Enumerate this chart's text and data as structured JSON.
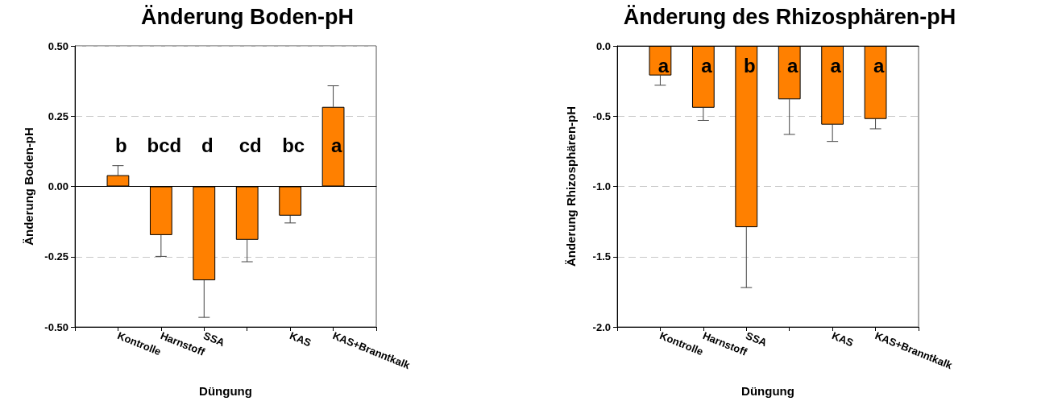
{
  "chart_data": [
    {
      "type": "bar",
      "title": "Änderung Boden-pH",
      "xlabel": "Düngung",
      "ylabel": "Änderung Boden-pH",
      "categories": [
        "Kontrolle",
        "Harnstoff",
        "SSA",
        null,
        "KAS",
        "KAS+Branntkalk"
      ],
      "series": [
        {
          "color": "#ff8000",
          "values": [
            0.04,
            -0.173,
            -0.334,
            -0.19,
            -0.104,
            0.283
          ],
          "errors": [
            [
              0.04,
              0.074
            ],
            [
              -0.249,
              -0.173
            ],
            [
              -0.466,
              -0.334
            ],
            [
              -0.268,
              -0.19
            ],
            [
              -0.13,
              -0.104
            ],
            [
              0.283,
              0.358
            ]
          ]
        }
      ],
      "ylim": [
        -0.5,
        0.5
      ],
      "yticks": [
        {
          "value": -0.5,
          "label": "-0.50"
        },
        {
          "value": -0.25,
          "label": "-0.25"
        },
        {
          "value": 0,
          "label": "0.00"
        },
        {
          "value": 0.25,
          "label": "0.25"
        },
        {
          "value": 0.5,
          "label": "0.50"
        }
      ],
      "grid": "y",
      "annotations": [
        "b",
        "bcd",
        "d",
        "cd",
        "bc",
        "a"
      ]
    },
    {
      "type": "bar",
      "title": "Änderung des Rhizosphären-pH",
      "xlabel": "Düngung",
      "ylabel": "Änderung Rhizosphären-pH",
      "categories": [
        "Kontrolle",
        "Harnstoff",
        "SSA",
        null,
        "KAS",
        "KAS+Branntkalk"
      ],
      "series": [
        {
          "color": "#ff8000",
          "values": [
            -0.21,
            -0.44,
            -1.29,
            -0.38,
            -0.56,
            -0.52
          ],
          "errors": [
            [
              -0.28,
              -0.21
            ],
            [
              -0.53,
              -0.44
            ],
            [
              -1.72,
              -1.29
            ],
            [
              -0.63,
              -0.38
            ],
            [
              -0.68,
              -0.56
            ],
            [
              -0.59,
              -0.52
            ]
          ]
        }
      ],
      "ylim": [
        -2,
        0
      ],
      "yticks": [
        {
          "value": -2,
          "label": "-2.0"
        },
        {
          "value": -1.5,
          "label": "-1.5"
        },
        {
          "value": -1,
          "label": "-1.0"
        },
        {
          "value": -0.5,
          "label": "-0.5"
        },
        {
          "value": 0,
          "label": "0.0"
        }
      ],
      "grid": "y",
      "annotations": [
        "a",
        "a",
        "b",
        "a",
        "a",
        "a"
      ]
    }
  ]
}
